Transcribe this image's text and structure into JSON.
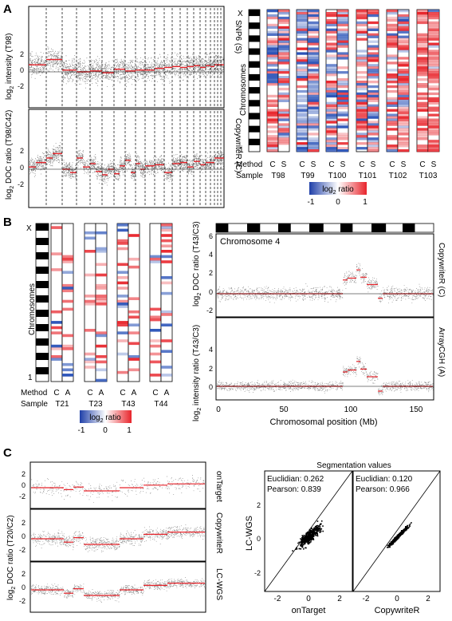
{
  "panels": {
    "A": {
      "label": "A",
      "top": {
        "ylabel_main": "log",
        "ylabel_sub": "2",
        "ylabel_rest": " intensity (T98)",
        "side_label": "SNP6 (S)",
        "yticks": [
          "2",
          "0",
          "-2"
        ]
      },
      "bottom": {
        "ylabel_main": "log",
        "ylabel_sub": "2",
        "ylabel_rest": " DOC ratio (T98/C42)",
        "side_label": "CopywriteR (C)",
        "yticks": [
          "2",
          "0",
          "-2"
        ]
      },
      "heatmap": {
        "chrom_axis_label": "Chromosomes",
        "chrom_top": "X",
        "chrom_bottom": "1",
        "method_label": "Method",
        "sample_label": "Sample",
        "methods": [
          "C",
          "S"
        ],
        "samples": [
          "T98",
          "T99",
          "T100",
          "T101",
          "T102",
          "T103"
        ],
        "legend_title_main": "log",
        "legend_title_sub": "2",
        "legend_title_rest": " ratio",
        "legend_ticks": [
          "-1",
          "0",
          "1"
        ]
      }
    },
    "B": {
      "label": "B",
      "heatmap": {
        "chrom_axis_label": "Chromosomes",
        "chrom_top": "X",
        "chrom_bottom": "1",
        "method_label": "Method",
        "sample_label": "Sample",
        "methods": [
          "C",
          "A"
        ],
        "samples": [
          "T21",
          "T23",
          "T43",
          "T44"
        ],
        "legend_title_main": "log",
        "legend_title_sub": "2",
        "legend_title_rest": " ratio",
        "legend_ticks": [
          "-1",
          "0",
          "1"
        ]
      },
      "chrom_plot": {
        "annotation": "Chromosome 4",
        "top_ylabel_main": "log",
        "top_ylabel_sub": "2",
        "top_ylabel_rest": " DOC ratio (T43/C3)",
        "bottom_ylabel_main": "log",
        "bottom_ylabel_sub": "2",
        "bottom_ylabel_rest": " intensity ratio (T43/C3)",
        "top_side_label": "CopywriteR (C)",
        "bottom_side_label": "ArrayCGH (A)",
        "top_yticks": [
          "6",
          "4",
          "2",
          "0",
          "-2"
        ],
        "bottom_yticks": [
          "4",
          "2",
          "0"
        ],
        "xticks": [
          "0",
          "50",
          "100",
          "150"
        ],
        "xlabel": "Chromosomal position (Mb)"
      }
    },
    "C": {
      "label": "C",
      "tracks": {
        "ylabel_main": "log",
        "ylabel_sub": "2",
        "ylabel_rest": " DOC ratio (T20/C2)",
        "side_labels": [
          "onTarget",
          "CopywriteR",
          "LC-WGS"
        ],
        "yticks": [
          "2",
          "0",
          "-2"
        ]
      },
      "scatter": {
        "title": "Segmentation values",
        "ylabel": "LC-WGS",
        "left": {
          "xlabel": "onTarget",
          "euclidian": "Euclidian: 0.262",
          "pearson": "Pearson: 0.839"
        },
        "right": {
          "xlabel": "CopywriteR",
          "euclidian": "Euclidian: 0.120",
          "pearson": "Pearson: 0.966"
        },
        "xticks": [
          "-2",
          "0",
          "2"
        ],
        "yticks": [
          "2",
          "0",
          "-2"
        ]
      }
    }
  },
  "colors": {
    "gain": "#e8242b",
    "loss": "#2a53b8",
    "segment": "#e8242b",
    "point": "#000000"
  }
}
